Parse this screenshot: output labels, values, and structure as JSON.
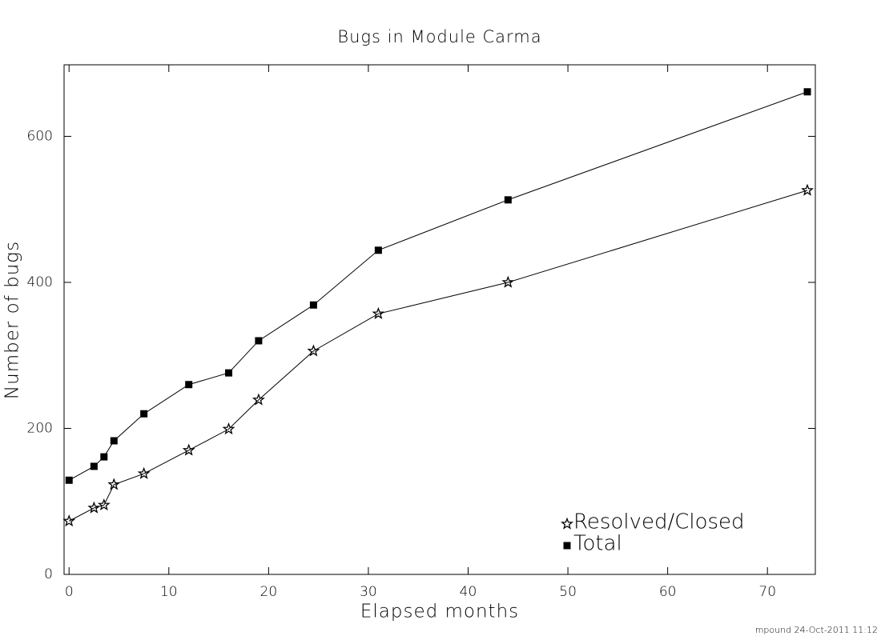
{
  "chart_data": {
    "type": "line",
    "title": "Bugs in Module Carma",
    "x_label": "Elapsed months",
    "y_label": "Number of bugs",
    "footer": "mpound 24-Oct-2011 11:12",
    "xlim": [
      -0.5,
      74.8
    ],
    "ylim": [
      0,
      698
    ],
    "xticks": [
      0,
      10,
      20,
      30,
      40,
      50,
      60,
      70
    ],
    "yticks": [
      0,
      200,
      400,
      600
    ],
    "legend": "lower right",
    "series": [
      {
        "name": "Resolved/Closed",
        "color": "#000000",
        "marker": "star",
        "x": [
          0,
          2.5,
          3.5,
          4.5,
          7.5,
          12,
          16,
          19,
          24.5,
          31,
          44,
          74
        ],
        "values": [
          73,
          91,
          95,
          123,
          138,
          170,
          199,
          239,
          306,
          357,
          400,
          526
        ]
      },
      {
        "name": "Total",
        "color": "#000000",
        "marker": "square",
        "x": [
          0,
          2.5,
          3.5,
          4.5,
          7.5,
          12,
          16,
          19,
          24.5,
          31,
          44,
          74
        ],
        "values": [
          129,
          148,
          161,
          183,
          220,
          260,
          276,
          320,
          369,
          444,
          513,
          661
        ]
      }
    ]
  }
}
